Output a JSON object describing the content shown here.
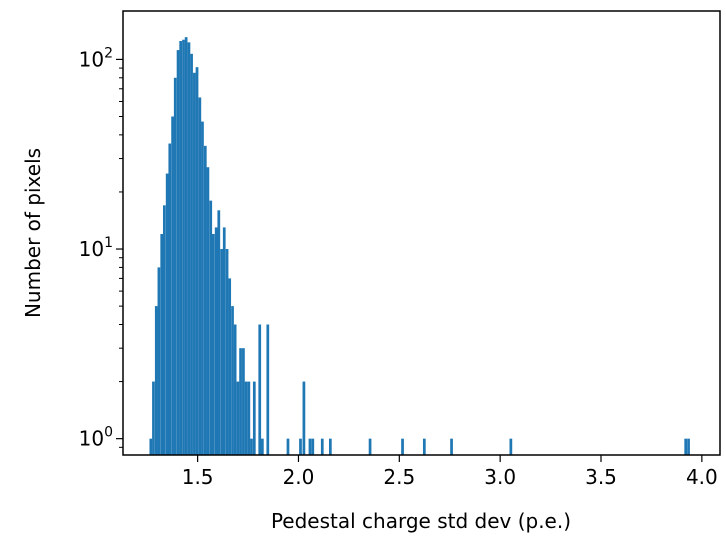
{
  "chart_data": {
    "type": "bar",
    "title": "",
    "xlabel": "Pedestal charge std dev (p.e.)",
    "ylabel": "Number of pixels",
    "yscale": "log",
    "xlim": [
      1.13,
      4.09
    ],
    "ylim": [
      0.82,
      180
    ],
    "bar_color": "#1f77b4",
    "bin_width": 0.0135,
    "x_ticks": [
      1.5,
      2.0,
      2.5,
      3.0,
      3.5,
      4.0
    ],
    "x_tick_labels": [
      "1.5",
      "2.0",
      "2.5",
      "3.0",
      "3.5",
      "4.0"
    ],
    "y_ticks": [
      1,
      10,
      100
    ],
    "y_tick_labels": [
      {
        "base": "10",
        "exp": "0"
      },
      {
        "base": "10",
        "exp": "1"
      },
      {
        "base": "10",
        "exp": "2"
      }
    ],
    "bins": [
      [
        1.268,
        1
      ],
      [
        1.281,
        2
      ],
      [
        1.295,
        5
      ],
      [
        1.308,
        8
      ],
      [
        1.322,
        12
      ],
      [
        1.335,
        17
      ],
      [
        1.349,
        25
      ],
      [
        1.362,
        36
      ],
      [
        1.376,
        50
      ],
      [
        1.389,
        80
      ],
      [
        1.403,
        112
      ],
      [
        1.416,
        125
      ],
      [
        1.43,
        127
      ],
      [
        1.443,
        131
      ],
      [
        1.457,
        123
      ],
      [
        1.47,
        107
      ],
      [
        1.484,
        85
      ],
      [
        1.497,
        91
      ],
      [
        1.511,
        63
      ],
      [
        1.524,
        47
      ],
      [
        1.538,
        35
      ],
      [
        1.551,
        27
      ],
      [
        1.565,
        18
      ],
      [
        1.578,
        12
      ],
      [
        1.592,
        13
      ],
      [
        1.605,
        16
      ],
      [
        1.619,
        10
      ],
      [
        1.632,
        13
      ],
      [
        1.646,
        10
      ],
      [
        1.659,
        7
      ],
      [
        1.673,
        5
      ],
      [
        1.686,
        4
      ],
      [
        1.7,
        2
      ],
      [
        1.713,
        3
      ],
      [
        1.727,
        3
      ],
      [
        1.74,
        2
      ],
      [
        1.754,
        2
      ],
      [
        1.767,
        1
      ],
      [
        1.781,
        2
      ],
      [
        1.808,
        4
      ],
      [
        1.821,
        1
      ],
      [
        1.848,
        4
      ],
      [
        1.948,
        1
      ],
      [
        2.01,
        1
      ],
      [
        2.027,
        2
      ],
      [
        2.057,
        1
      ],
      [
        2.071,
        1
      ],
      [
        2.118,
        1
      ],
      [
        2.158,
        1
      ],
      [
        2.355,
        1
      ],
      [
        2.516,
        1
      ],
      [
        2.624,
        1
      ],
      [
        2.759,
        1
      ],
      [
        3.053,
        1
      ],
      [
        3.92,
        1
      ],
      [
        3.934,
        1
      ]
    ]
  }
}
